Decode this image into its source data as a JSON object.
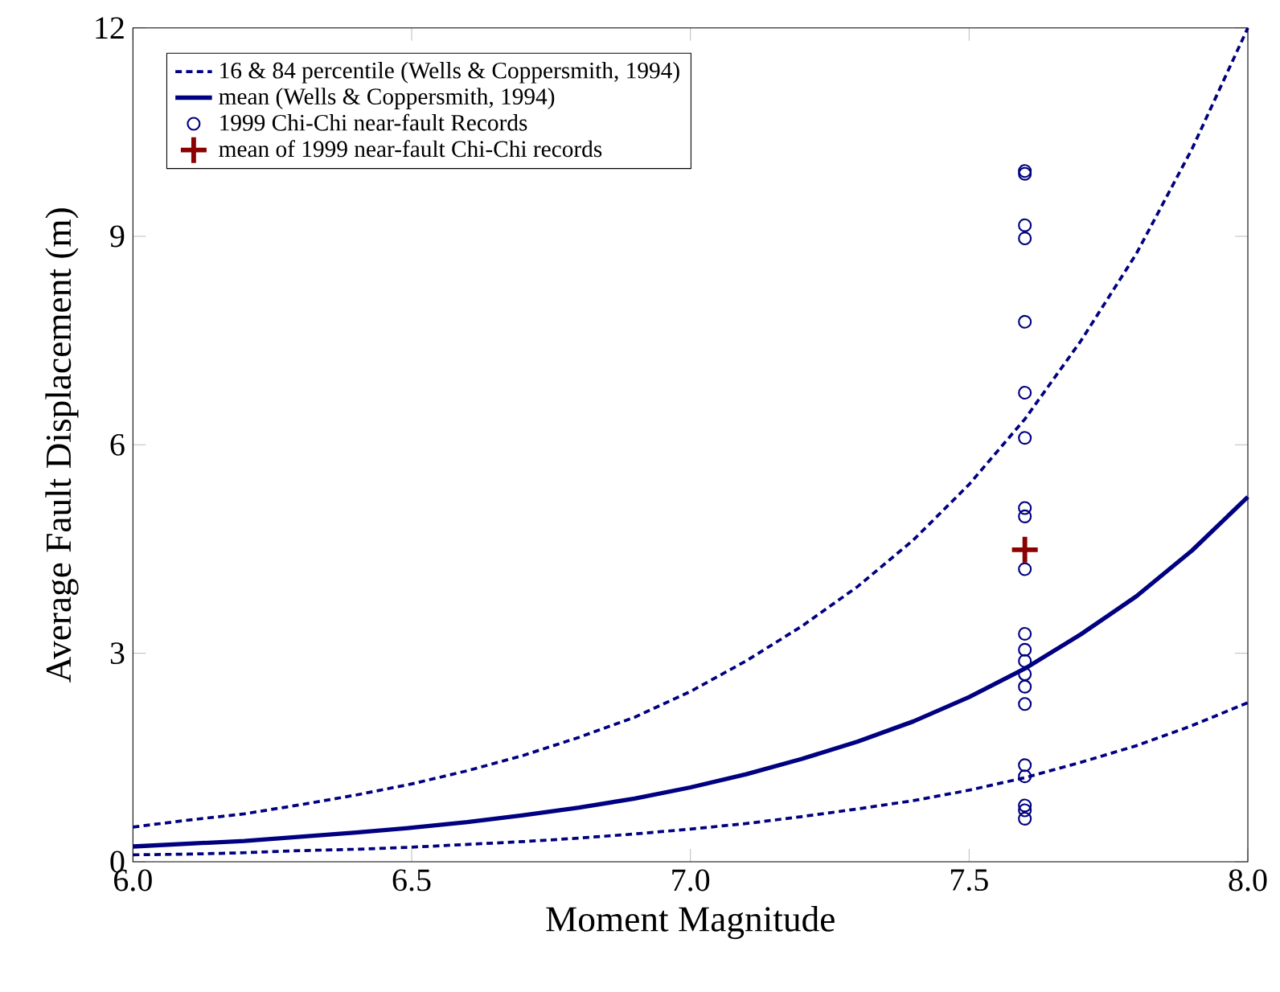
{
  "chart_data": {
    "type": "line",
    "xlabel": "Moment Magnitude",
    "ylabel": "Average Fault Displacement (m)",
    "xlim": [
      6.0,
      8.0
    ],
    "ylim": [
      0,
      12
    ],
    "xticks": [
      {
        "value": 6.0,
        "label": "6.0"
      },
      {
        "value": 6.5,
        "label": "6.5"
      },
      {
        "value": 7.0,
        "label": "7.0"
      },
      {
        "value": 7.5,
        "label": "7.5"
      },
      {
        "value": 8.0,
        "label": "8.0"
      }
    ],
    "yticks": [
      0,
      3,
      6,
      9,
      12
    ],
    "grid": false,
    "legend": "top left",
    "series": [
      {
        "name": "16 & 84 percentile (Wells & Coppersmith, 1994)",
        "line_style": "dashed",
        "marker": "none",
        "color": "#000080",
        "x": [
          6.0,
          6.1,
          6.2,
          6.3,
          6.4,
          6.5,
          6.6,
          6.7,
          6.8,
          6.9,
          7.0,
          7.1,
          7.2,
          7.3,
          7.4,
          7.5,
          7.6,
          7.7,
          7.8,
          7.9,
          8.0
        ],
        "values": [
          0.5,
          0.6,
          0.69,
          0.82,
          0.96,
          1.12,
          1.31,
          1.53,
          1.79,
          2.08,
          2.45,
          2.89,
          3.39,
          3.96,
          4.63,
          5.43,
          6.37,
          7.49,
          8.75,
          10.26,
          12.0
        ]
      },
      {
        "line_style": "dashed",
        "marker": "none",
        "color": "#000080",
        "x": [
          6.0,
          6.1,
          6.2,
          6.3,
          6.4,
          6.5,
          6.6,
          6.7,
          6.8,
          6.9,
          7.0,
          7.1,
          7.2,
          7.3,
          7.4,
          7.5,
          7.6,
          7.7,
          7.8,
          7.9,
          8.0
        ],
        "values": [
          0.1,
          0.11,
          0.13,
          0.16,
          0.18,
          0.21,
          0.25,
          0.29,
          0.34,
          0.4,
          0.47,
          0.55,
          0.65,
          0.76,
          0.88,
          1.03,
          1.21,
          1.43,
          1.67,
          1.96,
          2.29
        ]
      },
      {
        "name": "mean (Wells & Coppersmith, 1994)",
        "line_style": "solid",
        "marker": "none",
        "color": "#000080",
        "x": [
          6.0,
          6.1,
          6.2,
          6.3,
          6.4,
          6.5,
          6.6,
          6.7,
          6.8,
          6.9,
          7.0,
          7.1,
          7.2,
          7.3,
          7.4,
          7.5,
          7.6,
          7.7,
          7.8,
          7.9,
          8.0
        ],
        "values": [
          0.22,
          0.26,
          0.3,
          0.36,
          0.42,
          0.49,
          0.57,
          0.67,
          0.78,
          0.91,
          1.07,
          1.26,
          1.48,
          1.73,
          2.02,
          2.37,
          2.78,
          3.27,
          3.82,
          4.48,
          5.25
        ]
      },
      {
        "name": "1999 Chi-Chi near-fault Records",
        "type": "scatter",
        "marker": "circle",
        "color": "#000080",
        "x": [
          7.6,
          7.6,
          7.6,
          7.6,
          7.6,
          7.6,
          7.6,
          7.6,
          7.6,
          7.6,
          7.6,
          7.6,
          7.6,
          7.6,
          7.6,
          7.6,
          7.6,
          7.6,
          7.6,
          7.6,
          7.6
        ],
        "values": [
          9.94,
          9.9,
          9.16,
          8.97,
          7.77,
          6.75,
          6.1,
          5.09,
          4.97,
          4.21,
          3.28,
          3.05,
          2.89,
          2.7,
          2.52,
          2.27,
          1.39,
          1.23,
          0.81,
          0.74,
          0.62
        ]
      },
      {
        "name": "mean of 1999 near-fault Chi-Chi records",
        "type": "scatter",
        "marker": "cross",
        "color": "#8b0000",
        "x": [
          7.6
        ],
        "values": [
          4.49
        ]
      }
    ]
  }
}
